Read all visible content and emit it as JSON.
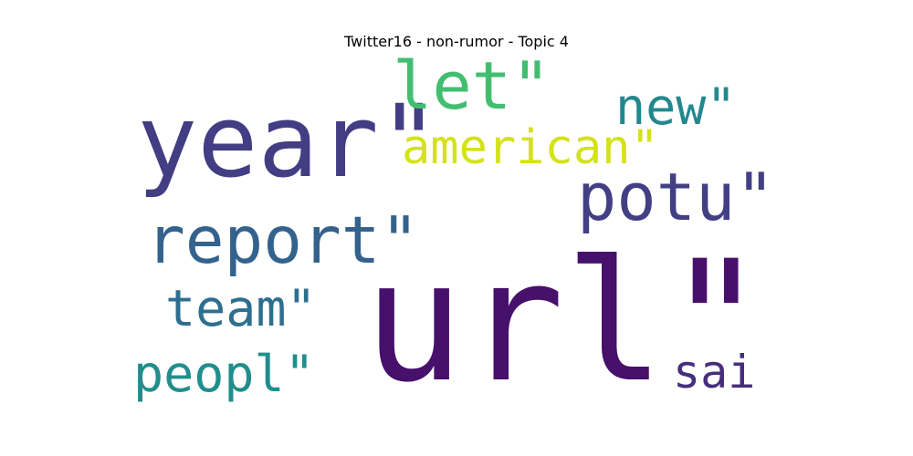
{
  "title": "Twitter16 - non-rumor - Topic 4",
  "words": [
    {
      "text": "url\"",
      "color": "#46106b"
    },
    {
      "text": "year\"",
      "color": "#433d84"
    },
    {
      "text": "report\"",
      "color": "#33628d"
    },
    {
      "text": "potu\"",
      "color": "#423f85"
    },
    {
      "text": "let\"",
      "color": "#42be71"
    },
    {
      "text": "american\"",
      "color": "#d4e21a"
    },
    {
      "text": "new\"",
      "color": "#23888e"
    },
    {
      "text": "team\"",
      "color": "#2d6f8e"
    },
    {
      "text": "peopl\"",
      "color": "#208e8c"
    },
    {
      "text": "sai",
      "color": "#472e7c"
    }
  ]
}
